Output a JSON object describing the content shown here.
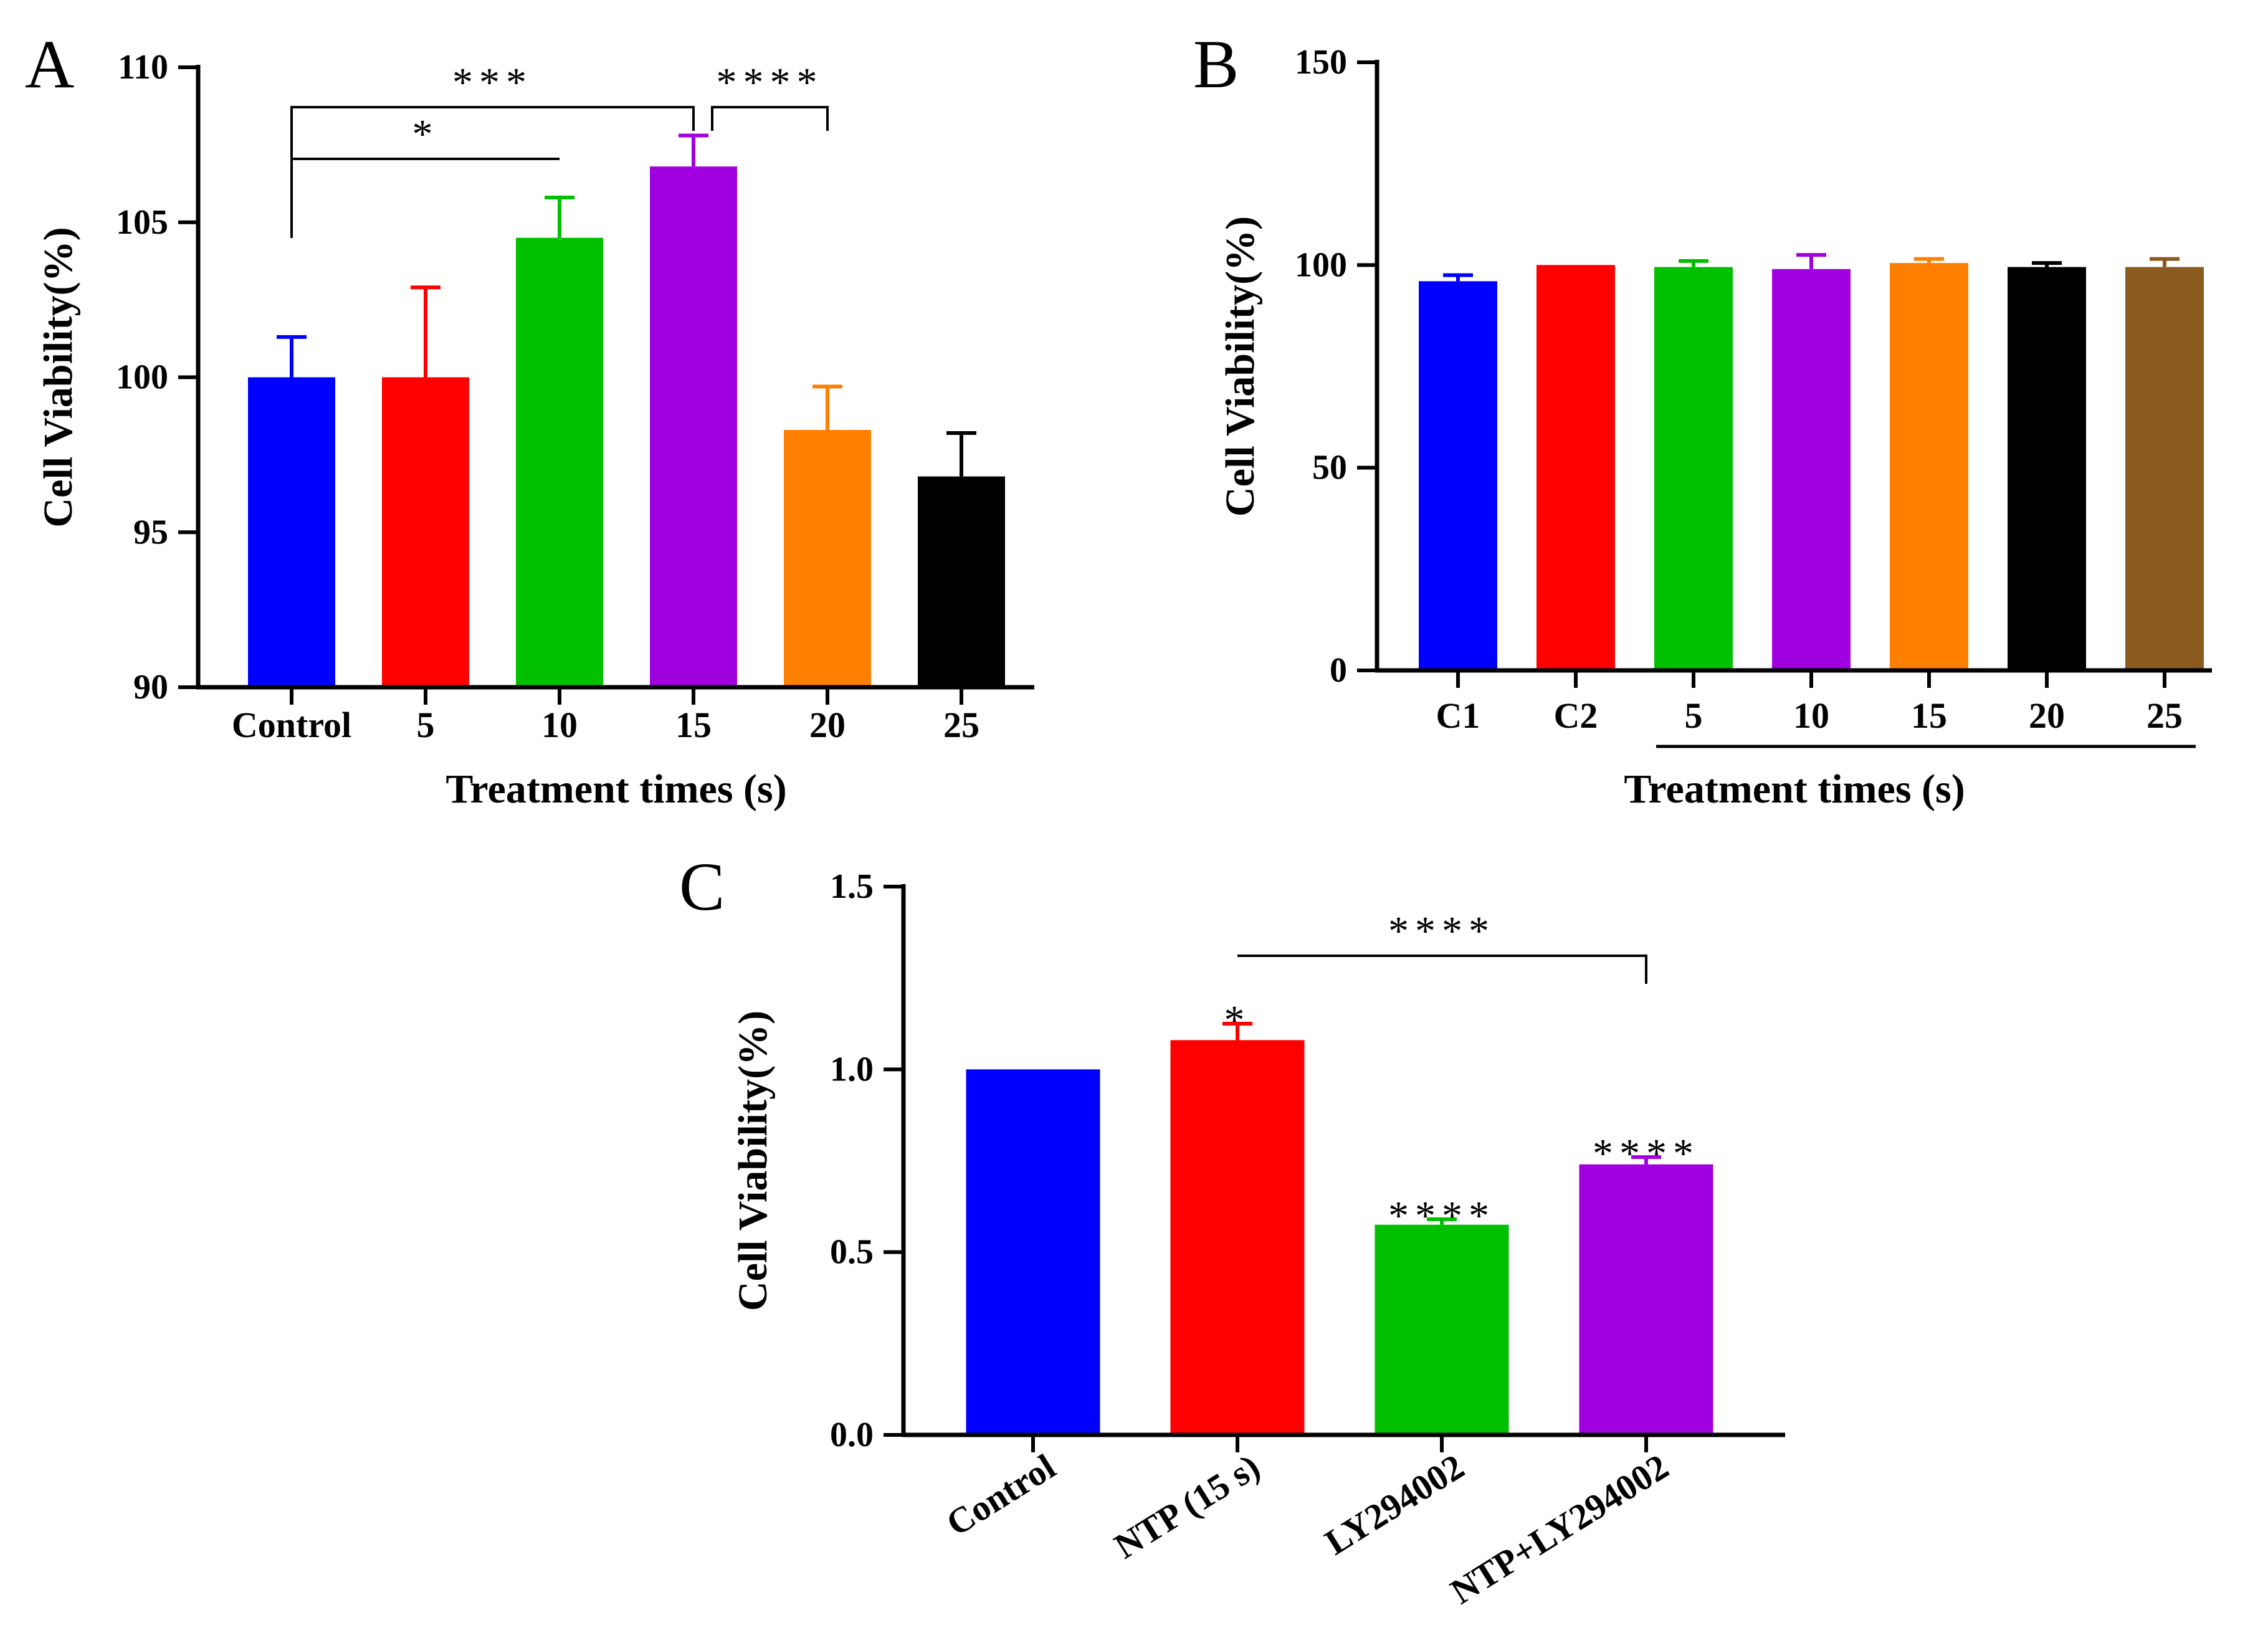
{
  "chart_data": [
    {
      "panel": "A",
      "type": "bar",
      "xlabel": "Treatment times (s)",
      "ylabel": "Cell Viability(%)",
      "ylim": [
        90,
        110
      ],
      "yticks": [
        90,
        95,
        100,
        105,
        110
      ],
      "categories": [
        "Control",
        "5",
        "10",
        "15",
        "20",
        "25"
      ],
      "values": [
        100.0,
        100.0,
        104.5,
        106.8,
        98.3,
        96.8
      ],
      "errors": [
        1.3,
        2.9,
        1.3,
        1.0,
        1.4,
        1.4
      ],
      "colors": [
        "#0000FF",
        "#FF0000",
        "#00C000",
        "#A000E0",
        "#FF8000",
        "#000000"
      ],
      "significance": [
        {
          "from": "Control",
          "to": "10",
          "label": "*"
        },
        {
          "from": "Control",
          "to": "15",
          "label": "***"
        },
        {
          "from": "15",
          "to": "20",
          "label": "****"
        }
      ]
    },
    {
      "panel": "B",
      "type": "bar",
      "xlabel": "Treatment times (s)",
      "ylabel": "Cell Viability(%)",
      "ylim": [
        0,
        150
      ],
      "yticks": [
        0,
        50,
        100,
        150
      ],
      "categories": [
        "C1",
        "C2",
        "5",
        "10",
        "15",
        "20",
        "25"
      ],
      "values": [
        96,
        100,
        99.5,
        99,
        100.5,
        99.5,
        99.5
      ],
      "errors": [
        1.5,
        0,
        1.5,
        3.5,
        1.0,
        1.0,
        2.0
      ],
      "colors": [
        "#0000FF",
        "#FF0000",
        "#00C000",
        "#A000E0",
        "#FF8000",
        "#000000",
        "#8B5A1E"
      ],
      "group_underline": {
        "from": "5",
        "to": "25"
      }
    },
    {
      "panel": "C",
      "type": "bar",
      "xlabel": "",
      "ylabel": "Cell Viability(%)",
      "ylim": [
        0.0,
        1.5
      ],
      "yticks": [
        "0.0",
        "0.5",
        "1.0",
        "1.5"
      ],
      "categories": [
        "Control",
        "NTP (15 s)",
        "LY294002",
        "NTP+LY294002"
      ],
      "values": [
        1.0,
        1.08,
        0.575,
        0.74
      ],
      "errors": [
        0,
        0.045,
        0.015,
        0.02
      ],
      "colors": [
        "#0000FF",
        "#FF0000",
        "#00C000",
        "#A000E0"
      ],
      "bar_annotations": [
        "",
        "*",
        "****",
        "****"
      ],
      "significance": [
        {
          "from": "NTP (15 s)",
          "to": "NTP+LY294002",
          "label": "****"
        }
      ]
    }
  ]
}
